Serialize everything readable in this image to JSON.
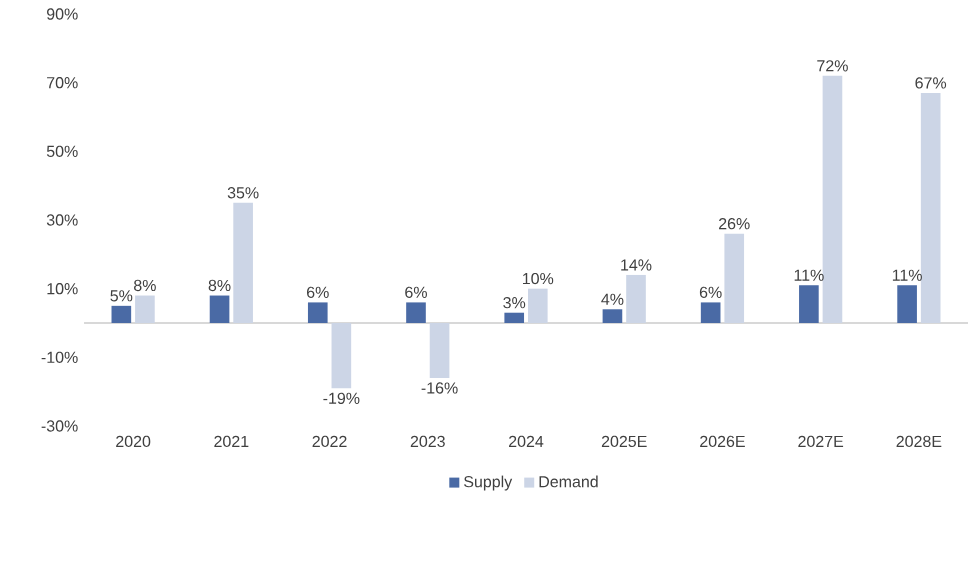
{
  "chart_data": {
    "type": "bar",
    "categories": [
      "2020",
      "2021",
      "2022",
      "2023",
      "2024",
      "2025E",
      "2026E",
      "2027E",
      "2028E"
    ],
    "series": [
      {
        "name": "Supply",
        "color": "#4a6aa5",
        "values": [
          5,
          8,
          6,
          6,
          3,
          4,
          6,
          11,
          11
        ],
        "value_labels": [
          "5%",
          "8%",
          "6%",
          "6%",
          "3%",
          "4%",
          "6%",
          "11%",
          "11%"
        ]
      },
      {
        "name": "Demand",
        "color": "#ccd5e6",
        "values": [
          8,
          35,
          -19,
          -16,
          10,
          14,
          26,
          72,
          67
        ],
        "value_labels": [
          "8%",
          "35%",
          "-19%",
          "-16%",
          "10%",
          "14%",
          "26%",
          "72%",
          "67%"
        ]
      }
    ],
    "ylim": [
      -30,
      90
    ],
    "yticks": [
      {
        "value": -30,
        "label": "-30%"
      },
      {
        "value": -10,
        "label": "-10%"
      },
      {
        "value": 10,
        "label": "10%"
      },
      {
        "value": 30,
        "label": "30%"
      },
      {
        "value": 50,
        "label": "50%"
      },
      {
        "value": 70,
        "label": "70%"
      },
      {
        "value": 90,
        "label": "90%"
      }
    ],
    "legend": "bottom"
  }
}
